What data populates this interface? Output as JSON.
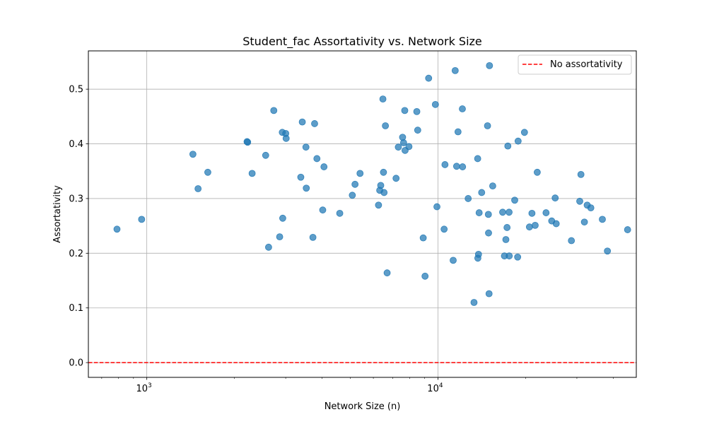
{
  "chart_data": {
    "type": "scatter",
    "title": "Student_fac Assortativity vs. Network Size",
    "xlabel": "Network Size (n)",
    "ylabel": "Assortativity",
    "xscale": "log",
    "xlim": [
      630,
      48000
    ],
    "ylim": [
      -0.027,
      0.57
    ],
    "x_major_ticks": [
      {
        "value": 1000,
        "base": "10",
        "exp": "3"
      },
      {
        "value": 10000,
        "base": "10",
        "exp": "4"
      }
    ],
    "y_ticks": [
      {
        "value": 0.0,
        "label": "0.0"
      },
      {
        "value": 0.1,
        "label": "0.1"
      },
      {
        "value": 0.2,
        "label": "0.2"
      },
      {
        "value": 0.3,
        "label": "0.3"
      },
      {
        "value": 0.4,
        "label": "0.4"
      },
      {
        "value": 0.5,
        "label": "0.5"
      }
    ],
    "grid": true,
    "legend_position": "top-right",
    "reference_line": {
      "y": 0.0,
      "label": "No assortativity",
      "color": "#ff0000",
      "style": "dashed"
    },
    "series": [
      {
        "color": "#1f77b4",
        "points": [
          [
            790,
            0.244
          ],
          [
            960,
            0.262
          ],
          [
            1440,
            0.381
          ],
          [
            1500,
            0.318
          ],
          [
            1620,
            0.348
          ],
          [
            2210,
            0.404
          ],
          [
            2220,
            0.403
          ],
          [
            2300,
            0.346
          ],
          [
            2560,
            0.379
          ],
          [
            2620,
            0.211
          ],
          [
            2730,
            0.461
          ],
          [
            2860,
            0.23
          ],
          [
            2920,
            0.421
          ],
          [
            2930,
            0.264
          ],
          [
            3000,
            0.419
          ],
          [
            3010,
            0.41
          ],
          [
            3380,
            0.339
          ],
          [
            3420,
            0.44
          ],
          [
            3520,
            0.394
          ],
          [
            3530,
            0.319
          ],
          [
            3720,
            0.229
          ],
          [
            3770,
            0.437
          ],
          [
            3840,
            0.373
          ],
          [
            4020,
            0.279
          ],
          [
            4060,
            0.358
          ],
          [
            4600,
            0.273
          ],
          [
            5080,
            0.306
          ],
          [
            5190,
            0.326
          ],
          [
            5400,
            0.346
          ],
          [
            6250,
            0.288
          ],
          [
            6310,
            0.315
          ],
          [
            6360,
            0.324
          ],
          [
            6470,
            0.482
          ],
          [
            6500,
            0.348
          ],
          [
            6530,
            0.311
          ],
          [
            6600,
            0.433
          ],
          [
            6690,
            0.164
          ],
          [
            7180,
            0.337
          ],
          [
            7310,
            0.394
          ],
          [
            7560,
            0.412
          ],
          [
            7620,
            0.402
          ],
          [
            7690,
            0.461
          ],
          [
            7710,
            0.388
          ],
          [
            7950,
            0.395
          ],
          [
            8460,
            0.459
          ],
          [
            8520,
            0.425
          ],
          [
            8900,
            0.228
          ],
          [
            9030,
            0.158
          ],
          [
            9290,
            0.52
          ],
          [
            9800,
            0.472
          ],
          [
            9920,
            0.285
          ],
          [
            10500,
            0.244
          ],
          [
            10570,
            0.362
          ],
          [
            11280,
            0.187
          ],
          [
            11460,
            0.534
          ],
          [
            11590,
            0.359
          ],
          [
            11720,
            0.422
          ],
          [
            12130,
            0.464
          ],
          [
            12150,
            0.358
          ],
          [
            12700,
            0.3
          ],
          [
            13300,
            0.11
          ],
          [
            13690,
            0.373
          ],
          [
            13710,
            0.191
          ],
          [
            13780,
            0.198
          ],
          [
            13850,
            0.274
          ],
          [
            14130,
            0.311
          ],
          [
            14800,
            0.433
          ],
          [
            14900,
            0.271
          ],
          [
            14920,
            0.237
          ],
          [
            14980,
            0.126
          ],
          [
            15030,
            0.543
          ],
          [
            15420,
            0.323
          ],
          [
            16680,
            0.275
          ],
          [
            16920,
            0.195
          ],
          [
            17110,
            0.225
          ],
          [
            17270,
            0.247
          ],
          [
            17380,
            0.396
          ],
          [
            17550,
            0.275
          ],
          [
            17570,
            0.195
          ],
          [
            18350,
            0.297
          ],
          [
            18780,
            0.193
          ],
          [
            18850,
            0.405
          ],
          [
            19820,
            0.421
          ],
          [
            20620,
            0.248
          ],
          [
            21030,
            0.273
          ],
          [
            21570,
            0.251
          ],
          [
            21930,
            0.348
          ],
          [
            23510,
            0.274
          ],
          [
            24590,
            0.259
          ],
          [
            25270,
            0.301
          ],
          [
            25480,
            0.254
          ],
          [
            28730,
            0.223
          ],
          [
            30690,
            0.295
          ],
          [
            30980,
            0.344
          ],
          [
            31840,
            0.257
          ],
          [
            32550,
            0.288
          ],
          [
            33500,
            0.283
          ],
          [
            36700,
            0.262
          ],
          [
            38200,
            0.204
          ],
          [
            44800,
            0.243
          ]
        ]
      }
    ]
  }
}
